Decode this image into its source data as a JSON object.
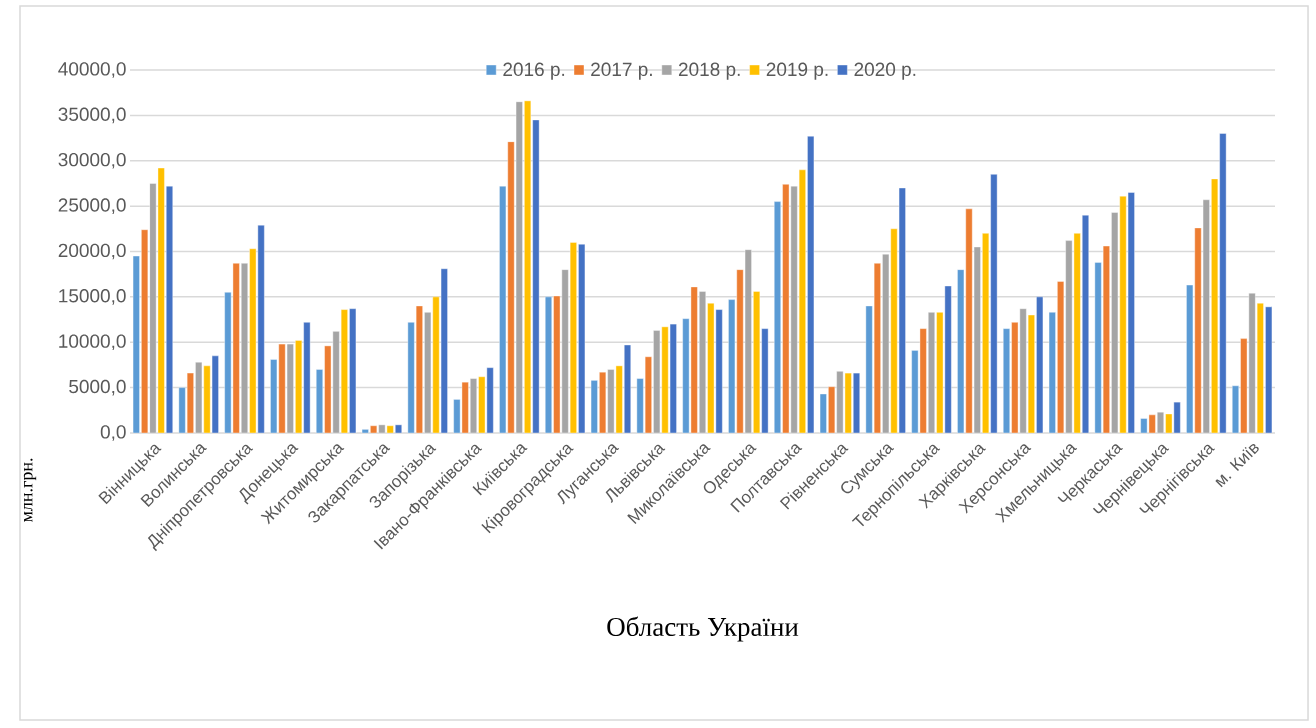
{
  "chart_data": {
    "type": "bar",
    "xlabel": "Область України",
    "ylabel": "млн.грн.",
    "categories": [
      "Вінницька",
      "Волинська",
      "Дніпропетровська",
      "Донецька",
      "Житомирська",
      "Закарпатська",
      "Запорізька",
      "Івано-Франківська",
      "Київська",
      "Кіровоградська",
      "Луганська",
      "Львівська",
      "Миколаївська",
      "Одеська",
      "Полтавська",
      "Рівненська",
      "Сумська",
      "Тернопільська",
      "Харківська",
      "Херсонська",
      "Хмельницька",
      "Черкаська",
      "Чернівецька",
      "Чернігівська",
      "м. Київ"
    ],
    "series": [
      {
        "name": "2016 р.",
        "color": "#5b9bd5",
        "values": [
          19500,
          5000,
          15500,
          8100,
          7000,
          400,
          12200,
          3700,
          27200,
          15000,
          5800,
          6000,
          12600,
          14700,
          25500,
          4300,
          14000,
          9100,
          18000,
          11500,
          13300,
          18800,
          1600,
          16300,
          5200
        ]
      },
      {
        "name": "2017 р.",
        "color": "#ed7d31",
        "values": [
          22400,
          6600,
          18700,
          9800,
          9600,
          800,
          14000,
          5600,
          32100,
          15100,
          6700,
          8400,
          16100,
          18000,
          27400,
          5100,
          18700,
          11500,
          24700,
          12200,
          16700,
          20600,
          2000,
          22600,
          10400
        ]
      },
      {
        "name": "2018 р.",
        "color": "#a5a5a5",
        "values": [
          27500,
          7800,
          18700,
          9800,
          11200,
          900,
          13300,
          6000,
          36500,
          18000,
          7000,
          11300,
          15600,
          20200,
          27200,
          6800,
          19700,
          13300,
          20500,
          13700,
          21200,
          24300,
          2300,
          25700,
          15400
        ]
      },
      {
        "name": "2019 р.",
        "color": "#ffc000",
        "values": [
          29200,
          7400,
          20300,
          10200,
          13600,
          800,
          15000,
          6200,
          36600,
          21000,
          7400,
          11700,
          14300,
          15600,
          29000,
          6600,
          22500,
          13300,
          22000,
          13000,
          22000,
          26100,
          2100,
          28000,
          14300
        ]
      },
      {
        "name": "2020 р.",
        "color": "#4472c4",
        "values": [
          27200,
          8500,
          22900,
          12200,
          13700,
          900,
          18100,
          7200,
          34500,
          20800,
          9700,
          12000,
          13600,
          11500,
          32700,
          6600,
          27000,
          16200,
          28500,
          15000,
          24000,
          26500,
          3400,
          33000,
          13900
        ]
      }
    ],
    "ylim": [
      0,
      40000
    ],
    "yticks": [
      {
        "value": 0,
        "label": "0,0"
      },
      {
        "value": 5000,
        "label": "5000,0"
      },
      {
        "value": 10000,
        "label": "10000,0"
      },
      {
        "value": 15000,
        "label": "15000,0"
      },
      {
        "value": 20000,
        "label": "20000,0"
      },
      {
        "value": 25000,
        "label": "25000,0"
      },
      {
        "value": 30000,
        "label": "30000,0"
      },
      {
        "value": 35000,
        "label": "35000,0"
      },
      {
        "value": 40000,
        "label": "40000,0"
      }
    ],
    "grid": "y",
    "legend": "top"
  }
}
